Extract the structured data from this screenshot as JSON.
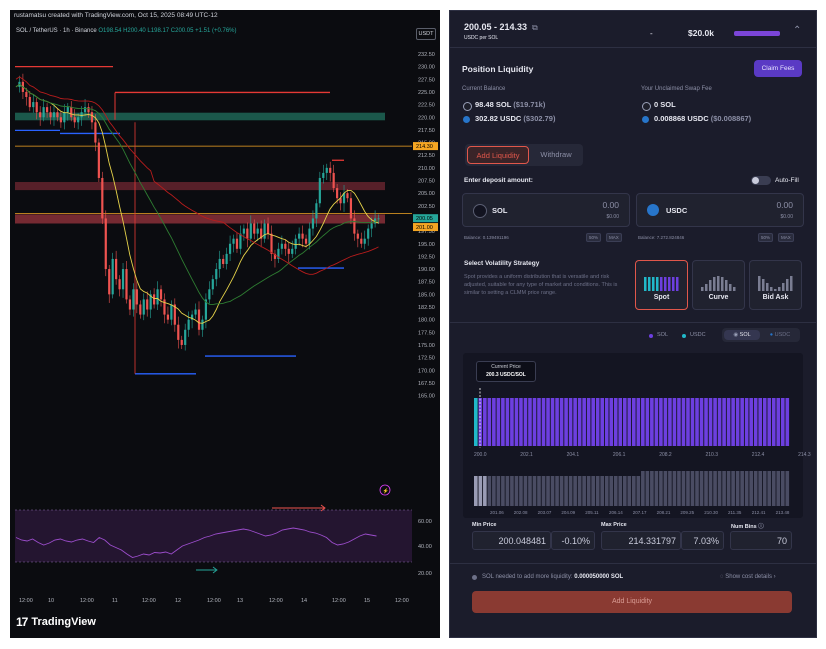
{
  "tradingview": {
    "header": "rustamatsu created with TradingView.com, Oct 15, 2025 08:49 UTC-12",
    "symbol_prefix": "SOL / TetherUS · 1h · Binance",
    "ohlc": "O198.54 H200.40 L198.17 C200.05 +1.51 (+0.76%)",
    "currency": "USDT",
    "brand": "TradingView",
    "brand_logo": "17",
    "price_ticks": [
      "232.50",
      "230.00",
      "227.50",
      "225.00",
      "222.50",
      "220.00",
      "217.50",
      "215.00",
      "212.50",
      "210.00",
      "207.50",
      "205.00",
      "202.50",
      "200.00",
      "197.50",
      "195.00",
      "192.50",
      "190.00",
      "187.50",
      "185.00",
      "182.50",
      "180.00",
      "177.50",
      "175.00",
      "172.50",
      "170.00",
      "167.50",
      "165.00"
    ],
    "price_tags": [
      {
        "text": "214.30",
        "color": "#f5a623"
      },
      {
        "text": "200.05",
        "color": "#26a69a"
      },
      {
        "text": "201.00",
        "color": "#f5a623"
      }
    ],
    "rsi_ticks": [
      "60.00",
      "40.00",
      "20.00"
    ],
    "time_ticks": [
      "12:00",
      "10",
      "12:00",
      "11",
      "12:00",
      "12",
      "12:00",
      "13",
      "12:00",
      "14",
      "12:00",
      "15",
      "12:00"
    ],
    "lightning_icon": "lightning-icon"
  },
  "app": {
    "range_title": "200.05 - 214.33",
    "range_subtitle": "USDC per SOL",
    "dash": "-",
    "value": "$20.0k",
    "collapse_icon": "chevron-up-icon",
    "external_icon": "external-link-icon",
    "position_title": "Position Liquidity",
    "claim_fees": "Claim Fees",
    "current_balance_label": "Current Balance",
    "unclaimed_label": "Your Unclaimed Swap Fee",
    "balances": [
      {
        "icon": "sol-icon",
        "amount": "98.48 SOL",
        "usd": "($19.71k)"
      },
      {
        "icon": "usdc-icon",
        "amount": "302.82 USDC",
        "usd": "($302.79)"
      }
    ],
    "unclaimed": [
      {
        "icon": "sol-icon",
        "amount": "0 SOL",
        "usd": ""
      },
      {
        "icon": "usdc-icon",
        "amount": "0.008868 USDC",
        "usd": "($0.008867)"
      }
    ],
    "tab_add": "Add Liquidity",
    "tab_withdraw": "Withdraw",
    "deposit_label": "Enter deposit amount:",
    "autofill_label": "Auto-Fill",
    "deposit": [
      {
        "token": "SOL",
        "amount": "0.00",
        "usd": "$0.00",
        "balance": "Balance: 0.139491196"
      },
      {
        "token": "USDC",
        "amount": "0.00",
        "usd": "$0.00",
        "balance": "Balance: 7.272.824846"
      }
    ],
    "mini_50": "50%",
    "mini_max": "MAX",
    "volatility_label": "Select Volatility Strategy",
    "strategy_desc": "Spot provides a uniform distribution that is versatile and risk adjusted, suitable for any type of market and conditions. This is similar to setting a CLMM price range.",
    "strategies": [
      "Spot",
      "Curve",
      "Bid Ask"
    ],
    "legend": [
      "SOL",
      "USDC"
    ],
    "toggle": [
      "SOL",
      "USDC"
    ],
    "current_price_label": "Current Price",
    "current_price_value": "200.3 USDC/SOL",
    "bin_axis": [
      "200.0",
      "202.1",
      "204.1",
      "206.1",
      "208.2",
      "210.3",
      "212.4",
      "214.3"
    ],
    "bin_axis2": [
      "201.06",
      "202.08",
      "203.07",
      "204.09",
      "205.11",
      "206.14",
      "207.17",
      "208.21",
      "209.25",
      "210.30",
      "211.35",
      "212.41",
      "213.48"
    ],
    "min_price_label": "Min Price",
    "max_price_label": "Max Price",
    "num_bins_label": "Num Bins",
    "min_price": "200.048481",
    "min_pct": "-0.10%",
    "max_price": "214.331797",
    "max_pct": "7.03%",
    "num_bins": "70",
    "sol_needed_prefix": "SOL needed to add more liquidity:",
    "sol_needed_value": "0.000050000 SOL",
    "show_cost": "Show cost details",
    "add_liquidity_button": "Add Liquidity",
    "accent": "#e1574b",
    "purple": "#6d3fe0",
    "teal": "#21b8c9"
  }
}
